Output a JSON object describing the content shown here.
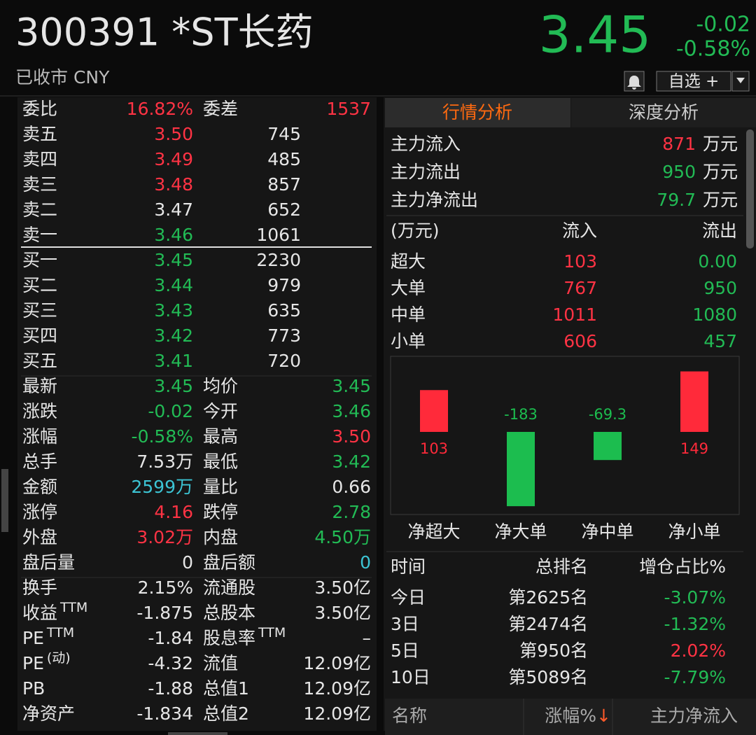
{
  "header": {
    "title": "300391 *ST长药",
    "status": "已收市 CNY",
    "price": "3.45",
    "change": "-0.02",
    "change_pct": "-0.58%",
    "watch_button": "自选 +"
  },
  "order_book": {
    "top": {
      "label": "委比",
      "value": "16.82%",
      "value_color": "red",
      "label2": "委差",
      "value2": "1537",
      "value2_color": "red"
    },
    "asks": [
      {
        "label": "卖五",
        "price": "3.50",
        "price_color": "red",
        "volume": "745"
      },
      {
        "label": "卖四",
        "price": "3.49",
        "price_color": "red",
        "volume": "485"
      },
      {
        "label": "卖三",
        "price": "3.48",
        "price_color": "red",
        "volume": "857"
      },
      {
        "label": "卖二",
        "price": "3.47",
        "price_color": "white",
        "volume": "652"
      },
      {
        "label": "卖一",
        "price": "3.46",
        "price_color": "green",
        "volume": "1061"
      }
    ],
    "bids": [
      {
        "label": "买一",
        "price": "3.45",
        "price_color": "green",
        "volume": "2230"
      },
      {
        "label": "买二",
        "price": "3.44",
        "price_color": "green",
        "volume": "979"
      },
      {
        "label": "买三",
        "price": "3.43",
        "price_color": "green",
        "volume": "635"
      },
      {
        "label": "买四",
        "price": "3.42",
        "price_color": "green",
        "volume": "773"
      },
      {
        "label": "买五",
        "price": "3.41",
        "price_color": "green",
        "volume": "720"
      }
    ]
  },
  "quotes": [
    {
      "label": "最新",
      "value": "3.45",
      "value_color": "green",
      "label2": "均价",
      "value2": "3.45",
      "value2_color": "green"
    },
    {
      "label": "涨跌",
      "value": "-0.02",
      "value_color": "green",
      "label2": "今开",
      "value2": "3.46",
      "value2_color": "green"
    },
    {
      "label": "涨幅",
      "value": "-0.58%",
      "value_color": "green",
      "label2": "最高",
      "value2": "3.50",
      "value2_color": "red"
    },
    {
      "label": "总手",
      "value": "7.53万",
      "value_color": "white",
      "label2": "最低",
      "value2": "3.42",
      "value2_color": "green"
    },
    {
      "label": "金额",
      "value": "2599万",
      "value_color": "cyan",
      "label2": "量比",
      "value2": "0.66",
      "value2_color": "white"
    },
    {
      "label": "涨停",
      "value": "4.16",
      "value_color": "red",
      "label2": "跌停",
      "value2": "2.78",
      "value2_color": "green"
    },
    {
      "label": "外盘",
      "value": "3.02万",
      "value_color": "red",
      "label2": "内盘",
      "value2": "4.50万",
      "value2_color": "green"
    },
    {
      "label": "盘后量",
      "value": "0",
      "value_color": "white",
      "label2": "盘后额",
      "value2": "0",
      "value2_color": "cyan"
    },
    {
      "label": "换手",
      "value": "2.15%",
      "value_color": "white",
      "label2": "流通股",
      "value2": "3.50亿",
      "value2_color": "white"
    },
    {
      "label": "收益",
      "label_sup": "TTM",
      "value": "-1.875",
      "value_color": "white",
      "label2": "总股本",
      "value2": "3.50亿",
      "value2_color": "white"
    },
    {
      "label": "PE",
      "label_sup": "TTM",
      "value": "-1.84",
      "value_color": "white",
      "label2": "股息率",
      "label2_sup": "TTM",
      "value2": "–",
      "value2_color": "white"
    },
    {
      "label": "PE",
      "label_sup": "(动)",
      "value": "-4.32",
      "value_color": "white",
      "label2": "流值",
      "value2": "12.09亿",
      "value2_color": "white"
    },
    {
      "label": "PB",
      "value": "-1.88",
      "value_color": "white",
      "label2": "总值1",
      "value2": "12.09亿",
      "value2_color": "white"
    },
    {
      "label": "净资产",
      "value": "-1.834",
      "value_color": "white",
      "label2": "总值2",
      "value2": "12.09亿",
      "value2_color": "white"
    }
  ],
  "tabs": [
    "行情分析",
    "深度分析"
  ],
  "active_tab": 0,
  "main_flow": [
    {
      "label": "主力流入",
      "value": "871",
      "color": "red",
      "unit": "万元"
    },
    {
      "label": "主力流出",
      "value": "950",
      "color": "green",
      "unit": "万元"
    },
    {
      "label": "主力净流出",
      "value": "79.7",
      "color": "green",
      "unit": "万元"
    }
  ],
  "flow_table": {
    "header": [
      "(万元)",
      "流入",
      "流出"
    ],
    "rows": [
      [
        "超大",
        "103",
        "0.00"
      ],
      [
        "大单",
        "767",
        "950"
      ],
      [
        "中单",
        "1011",
        "1080"
      ],
      [
        "小单",
        "606",
        "457"
      ]
    ]
  },
  "flow_chart": {
    "type": "bar",
    "categories": [
      "净超大",
      "净大单",
      "净中单",
      "净小单"
    ],
    "values": [
      103,
      -183,
      -69.3,
      149
    ],
    "positive_color": "#ff2a3a",
    "negative_color": "#1cbd4f"
  },
  "ranking": {
    "header": [
      "时间",
      "总排名",
      "增仓占比%"
    ],
    "rows": [
      {
        "period": "今日",
        "rank": "第2625名",
        "ratio": "-3.07%",
        "color": "green"
      },
      {
        "period": "3日",
        "rank": "第2474名",
        "ratio": "-1.32%",
        "color": "green"
      },
      {
        "period": "5日",
        "rank": "第950名",
        "ratio": "2.02%",
        "color": "red"
      },
      {
        "period": "10日",
        "rank": "第5089名",
        "ratio": "-7.79%",
        "color": "green"
      }
    ]
  },
  "list_header": {
    "columns": [
      "名称",
      "涨幅%",
      "主力净流入"
    ],
    "sort_arrow": "↓"
  }
}
